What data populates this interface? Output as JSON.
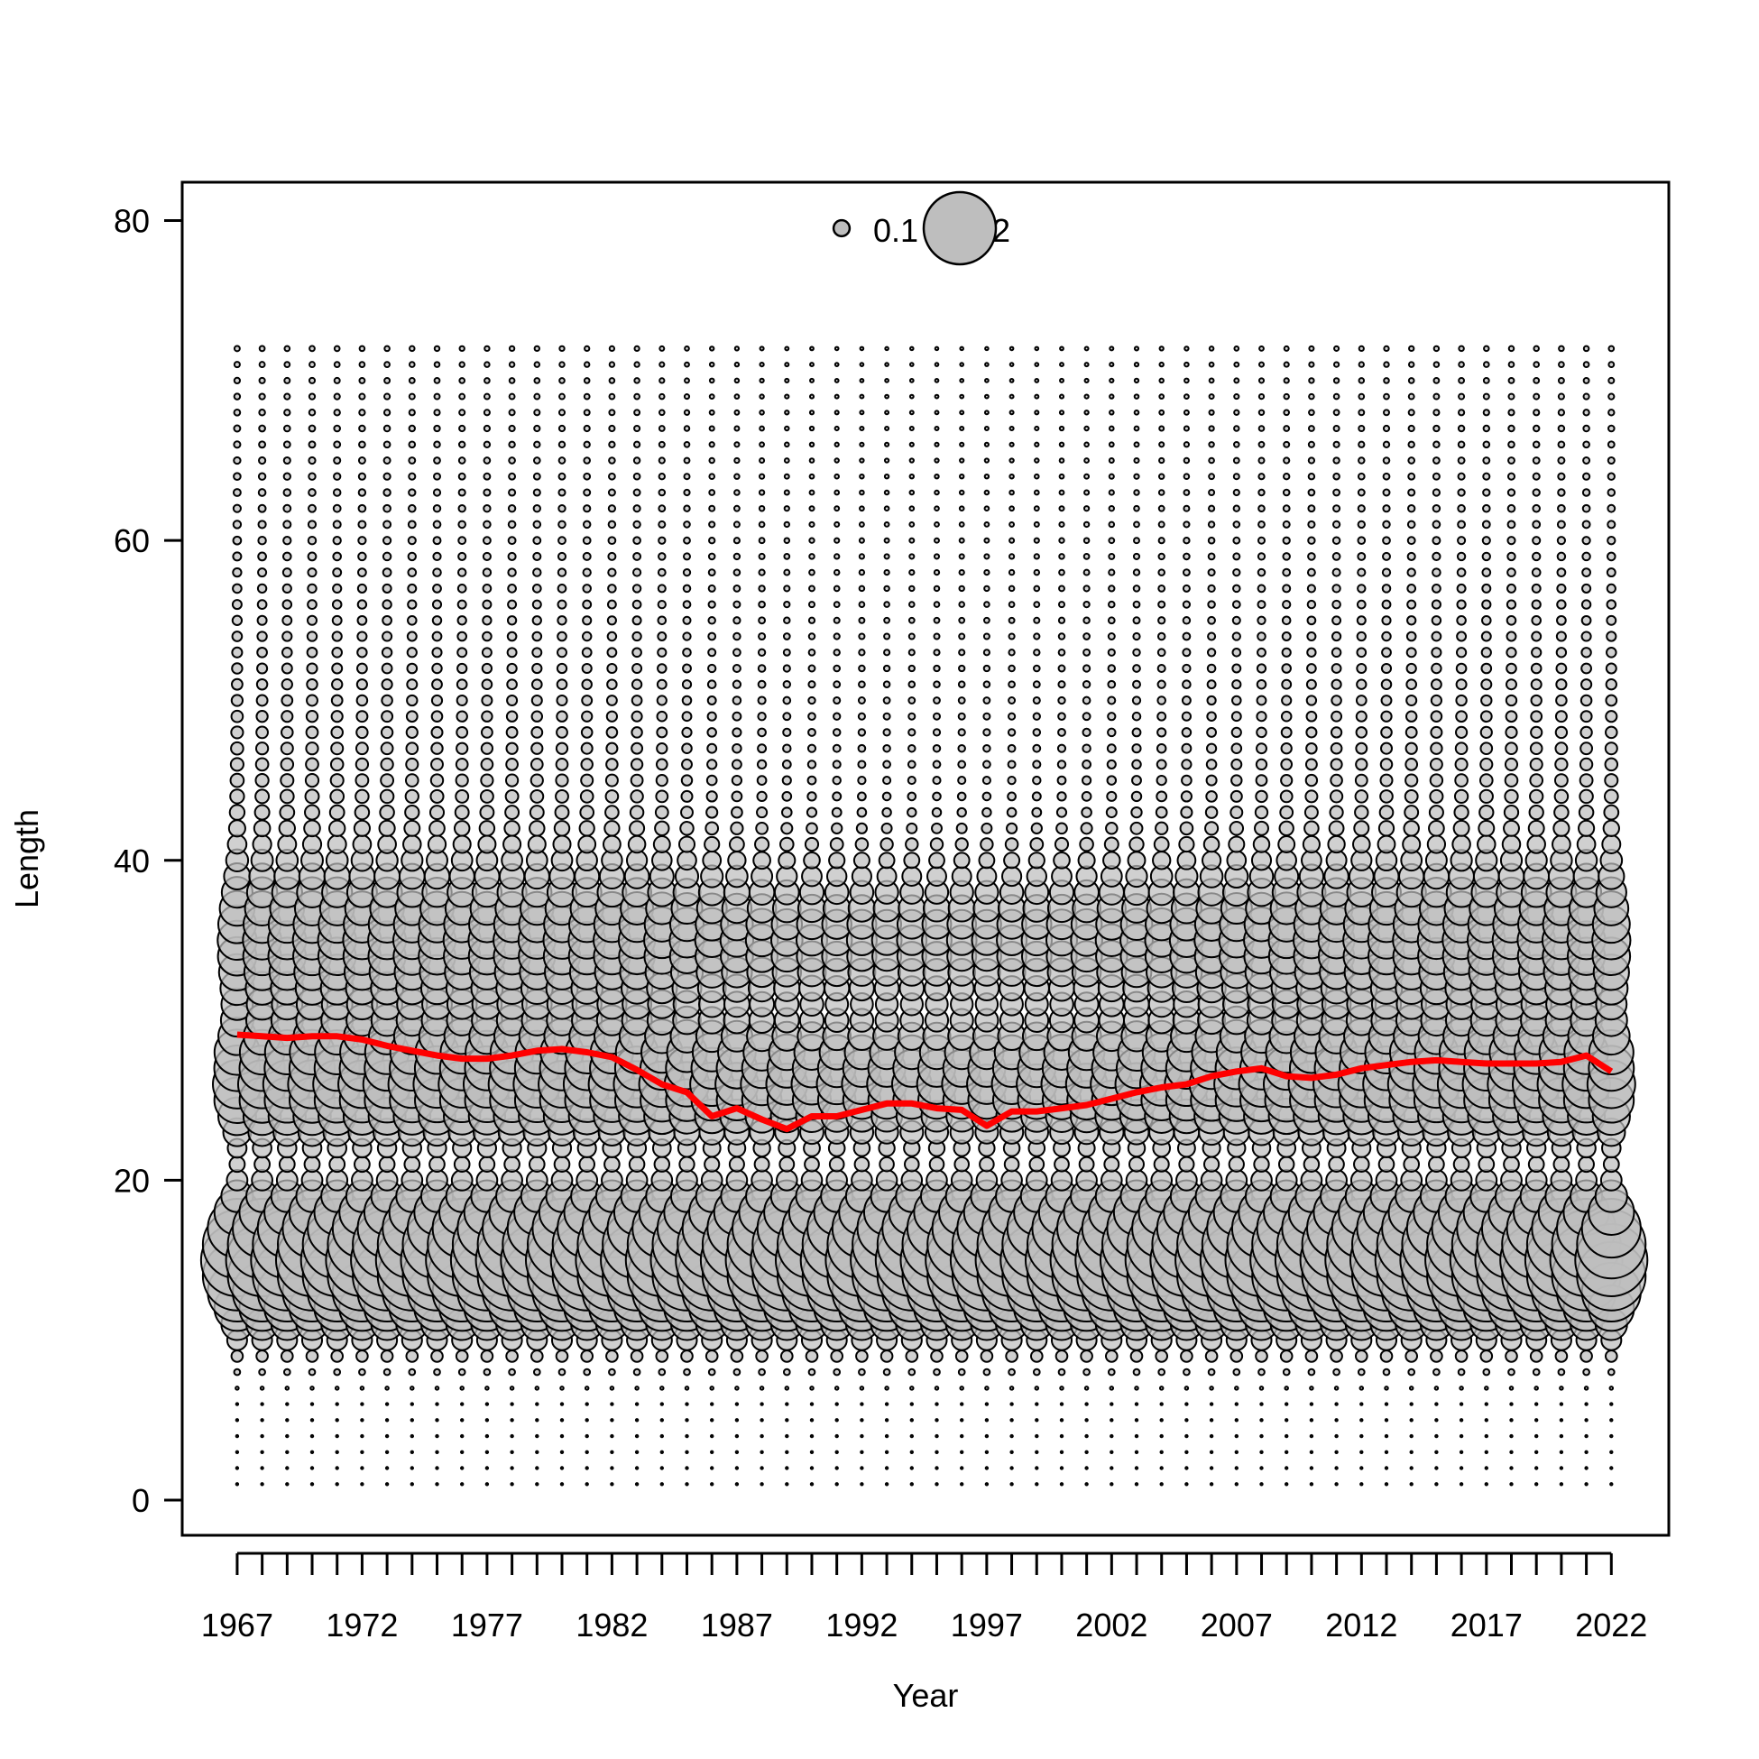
{
  "chart_data": {
    "type": "scatter",
    "subtype": "bubble",
    "title": "",
    "xlabel": "Year",
    "ylabel": "Length",
    "xlim": [
      1964.8,
      2024.3
    ],
    "ylim": [
      -2.2,
      82.4
    ],
    "x_ticks": [
      1967,
      1972,
      1977,
      1982,
      1987,
      1992,
      1997,
      2002,
      2007,
      2012,
      2017,
      2022
    ],
    "x_minor_ticks_every": 1,
    "y_ticks": [
      0,
      20,
      40,
      60,
      80
    ],
    "years": [
      1967,
      2022
    ],
    "length_bins": {
      "from": 1,
      "to": 72,
      "step": 1
    },
    "legend": {
      "placement": "top-center",
      "entries": [
        {
          "label": "0.1",
          "value": 0.1
        },
        {
          "label": "2",
          "value": 2
        }
      ]
    },
    "colors": {
      "bubble_fill": "#bebebe",
      "bubble_stroke": "#000000",
      "mean_line": "#ff0000"
    },
    "bubble_profile": {
      "description_of_modes": "three modes: ~15 (largest), ~26, ~35",
      "modes": [
        {
          "center": 15,
          "spread": 2.2,
          "peak": 2.0
        },
        {
          "center": 26,
          "spread": 2.0,
          "peak": 0.9
        },
        {
          "center": 35,
          "spread": 2.8,
          "peak": 0.45
        }
      ],
      "tail_level": 0.22,
      "tail_min_length": 28
    },
    "mean_length": {
      "name": "",
      "x": [
        1967,
        1968,
        1969,
        1970,
        1971,
        1972,
        1973,
        1974,
        1975,
        1976,
        1977,
        1978,
        1979,
        1980,
        1981,
        1982,
        1983,
        1984,
        1985,
        1986,
        1987,
        1988,
        1989,
        1990,
        1991,
        1992,
        1993,
        1994,
        1995,
        1996,
        1997,
        1998,
        1999,
        2000,
        2001,
        2002,
        2003,
        2004,
        2005,
        2006,
        2007,
        2008,
        2009,
        2010,
        2011,
        2012,
        2013,
        2014,
        2015,
        2016,
        2017,
        2018,
        2019,
        2020,
        2021,
        2022
      ],
      "values": [
        29.1,
        29.0,
        28.9,
        29.0,
        29.0,
        28.8,
        28.4,
        28.1,
        27.8,
        27.6,
        27.6,
        27.8,
        28.1,
        28.2,
        28.0,
        27.7,
        26.9,
        26.0,
        25.5,
        24.0,
        24.5,
        23.8,
        23.2,
        24.0,
        24.0,
        24.4,
        24.8,
        24.8,
        24.5,
        24.4,
        23.4,
        24.3,
        24.3,
        24.5,
        24.7,
        25.1,
        25.5,
        25.8,
        26.0,
        26.5,
        26.8,
        27.0,
        26.5,
        26.4,
        26.6,
        27.0,
        27.2,
        27.4,
        27.5,
        27.4,
        27.3,
        27.3,
        27.3,
        27.4,
        27.8,
        26.8
      ]
    },
    "year_abundance_factor": [
      1.0,
      0.98,
      0.97,
      0.98,
      0.97,
      0.96,
      0.96,
      0.95,
      0.94,
      0.93,
      0.93,
      0.93,
      0.93,
      0.93,
      0.92,
      0.92,
      0.91,
      0.88,
      0.84,
      0.8,
      0.78,
      0.75,
      0.72,
      0.7,
      0.68,
      0.67,
      0.66,
      0.66,
      0.66,
      0.66,
      0.66,
      0.67,
      0.68,
      0.7,
      0.72,
      0.74,
      0.76,
      0.78,
      0.8,
      0.82,
      0.84,
      0.86,
      0.88,
      0.89,
      0.9,
      0.91,
      0.92,
      0.93,
      0.94,
      0.95,
      0.95,
      0.95,
      0.95,
      0.96,
      0.96,
      0.97
    ]
  }
}
